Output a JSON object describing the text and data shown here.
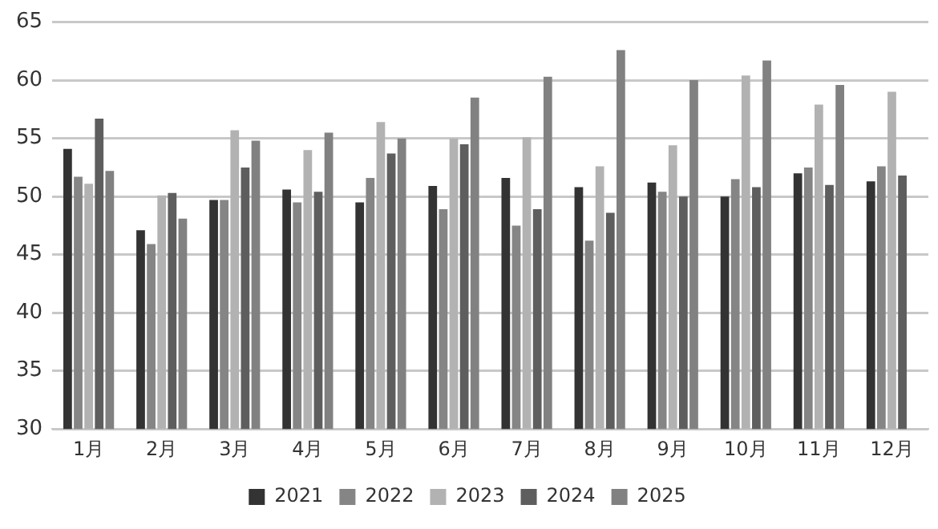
{
  "chart_data": {
    "type": "bar",
    "categories": [
      "1月",
      "2月",
      "3月",
      "4月",
      "5月",
      "6月",
      "7月",
      "8月",
      "9月",
      "10月",
      "11月",
      "12月"
    ],
    "series": [
      {
        "name": "2021",
        "color": "#333333",
        "values": [
          54.1,
          47.1,
          49.7,
          50.6,
          49.5,
          50.9,
          51.6,
          50.8,
          51.2,
          50.0,
          52.0,
          51.3
        ]
      },
      {
        "name": "2022",
        "color": "#858585",
        "values": [
          51.7,
          45.9,
          49.7,
          49.5,
          51.6,
          48.9,
          47.5,
          46.2,
          50.4,
          51.5,
          52.5,
          52.6
        ]
      },
      {
        "name": "2023",
        "color": "#b2b2b2",
        "values": [
          51.1,
          50.1,
          55.7,
          54.0,
          56.4,
          55.0,
          55.1,
          52.6,
          54.4,
          60.4,
          57.9,
          59.0
        ]
      },
      {
        "name": "2024",
        "color": "#5e5e5e",
        "values": [
          56.7,
          50.3,
          52.5,
          50.4,
          53.7,
          54.5,
          48.9,
          48.6,
          50.0,
          50.8,
          51.0,
          51.8
        ]
      },
      {
        "name": "2025",
        "color": "#818181",
        "values": [
          52.2,
          48.1,
          54.8,
          55.5,
          55.0,
          58.5,
          60.3,
          62.6,
          60.0,
          61.7,
          59.6,
          null
        ]
      }
    ],
    "ylim": [
      30,
      65
    ],
    "yticks": [
      30,
      35,
      40,
      45,
      50,
      55,
      60,
      65
    ],
    "grid": "y",
    "legend": "bottom"
  }
}
